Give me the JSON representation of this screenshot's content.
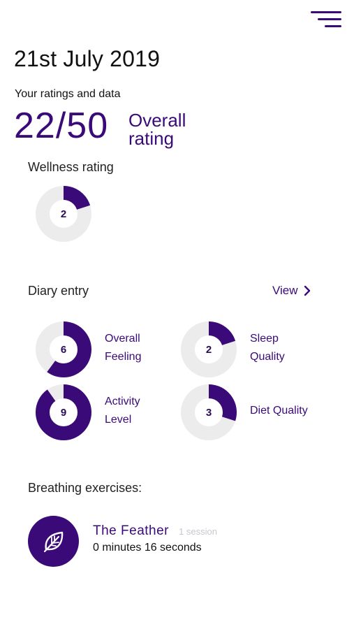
{
  "header": {
    "date": "21st July 2019",
    "subtitle": "Your ratings and data"
  },
  "overall": {
    "score_text": "22/50",
    "label": "Overall rating",
    "score": 22,
    "max": 50
  },
  "wellness": {
    "title": "Wellness rating",
    "value": 2,
    "max": 10
  },
  "diary": {
    "title": "Diary entry",
    "view_label": "View",
    "metrics": [
      {
        "label_line1": "Overall",
        "label_line2": "Feeling",
        "value": 6,
        "max": 10
      },
      {
        "label_line1": "Sleep",
        "label_line2": "Quality",
        "value": 2,
        "max": 10
      },
      {
        "label_line1": "Activity",
        "label_line2": "Level",
        "value": 9,
        "max": 10
      },
      {
        "label_line1": "Diet Quality",
        "label_line2": "",
        "value": 3,
        "max": 10
      }
    ]
  },
  "breathing": {
    "title": "Breathing exercises:",
    "exercises": [
      {
        "name": "The Feather",
        "sessions": "1 session",
        "duration": "0 minutes 16 seconds",
        "icon": "leaf-icon"
      }
    ]
  },
  "colors": {
    "accent": "#3a0a78",
    "track": "#ececec"
  }
}
